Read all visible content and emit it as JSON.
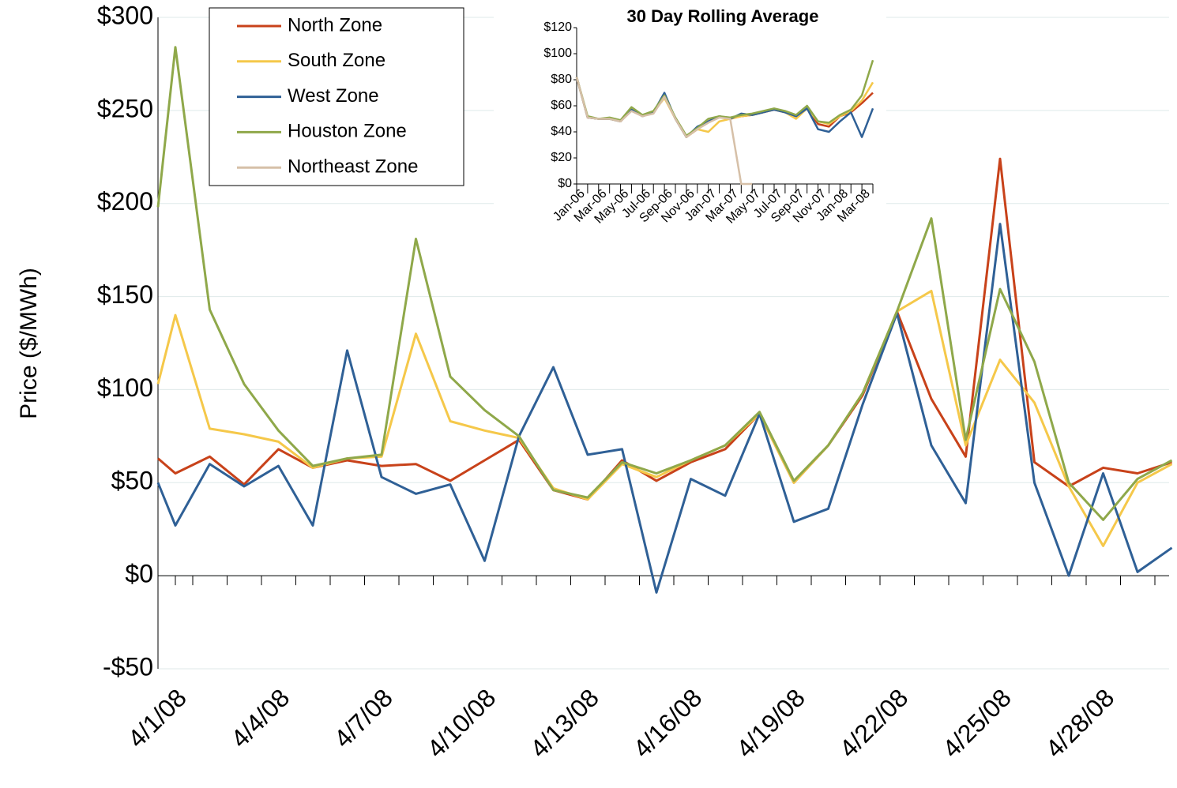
{
  "chart_data": [
    {
      "type": "line",
      "y_label": "Price ($/MWh)",
      "categories": [
        null,
        "4/1/08",
        null,
        null,
        "4/4/08",
        null,
        null,
        "4/7/08",
        null,
        null,
        "4/10/08",
        null,
        null,
        "4/13/08",
        null,
        null,
        "4/16/08",
        null,
        null,
        "4/19/08",
        null,
        null,
        "4/22/08",
        null,
        null,
        "4/25/08",
        null,
        null,
        "4/28/08",
        null,
        null
      ],
      "ylim": [
        -50,
        300
      ],
      "yticks": [
        {
          "value": -50,
          "label": "-$50"
        },
        {
          "value": 0,
          "label": "$0"
        },
        {
          "value": 50,
          "label": "$50"
        },
        {
          "value": 100,
          "label": "$100"
        },
        {
          "value": 150,
          "label": "$150"
        },
        {
          "value": 200,
          "label": "$200"
        },
        {
          "value": 250,
          "label": "$250"
        },
        {
          "value": 300,
          "label": "$300"
        }
      ],
      "grid": true,
      "legend": "top-left",
      "series": [
        {
          "name": "North Zone",
          "color": "#c8421a",
          "values": [
            63,
            55,
            64,
            49,
            68,
            58,
            62,
            59,
            60,
            51,
            62,
            73,
            46,
            41,
            62,
            51,
            61,
            68,
            87,
            50,
            70,
            97,
            142,
            95,
            64,
            224,
            61,
            48,
            58,
            55,
            61
          ]
        },
        {
          "name": "South Zone",
          "color": "#f5c84a",
          "values": [
            103,
            140,
            79,
            76,
            72,
            58,
            63,
            64,
            130,
            83,
            78,
            74,
            47,
            41,
            60,
            53,
            62,
            70,
            87,
            50,
            70,
            98,
            142,
            153,
            70,
            116,
            93,
            48,
            16,
            50,
            60
          ]
        },
        {
          "name": "West Zone",
          "color": "#2f6096",
          "values": [
            50,
            27,
            60,
            48,
            59,
            27,
            121,
            53,
            44,
            49,
            8,
            75,
            112,
            65,
            68,
            -9,
            52,
            43,
            87,
            29,
            36,
            92,
            141,
            70,
            39,
            189,
            50,
            0,
            55,
            2,
            15
          ]
        },
        {
          "name": "Houston Zone",
          "color": "#8fa84a",
          "values": [
            198,
            284,
            143,
            103,
            78,
            59,
            63,
            65,
            181,
            107,
            89,
            75,
            46,
            42,
            61,
            55,
            62,
            70,
            88,
            51,
            70,
            98,
            142,
            192,
            73,
            154,
            115,
            50,
            30,
            52,
            62
          ]
        },
        {
          "name": "Northeast Zone",
          "color": "#d6c0a8",
          "values": [
            null,
            null,
            null,
            null,
            null,
            null,
            null,
            null,
            null,
            null,
            null,
            null,
            null,
            null,
            null,
            null,
            null,
            null,
            null,
            null,
            null,
            null,
            null,
            null,
            null,
            null,
            null,
            null,
            null,
            null,
            null
          ]
        }
      ]
    },
    {
      "type": "line",
      "title": "30 Day Rolling Average",
      "categories": [
        "Jan-06",
        null,
        "Mar-06",
        null,
        "May-06",
        null,
        "Jul-06",
        null,
        "Sep-06",
        null,
        "Nov-06",
        null,
        "Jan-07",
        null,
        "Mar-07",
        null,
        "May-07",
        null,
        "Jul-07",
        null,
        "Sep-07",
        null,
        "Nov-07",
        null,
        "Jan-08",
        null,
        "Mar-08",
        null
      ],
      "ylim": [
        0,
        120
      ],
      "yticks": [
        {
          "value": 0,
          "label": "$0"
        },
        {
          "value": 20,
          "label": "$20"
        },
        {
          "value": 40,
          "label": "$40"
        },
        {
          "value": 60,
          "label": "$60"
        },
        {
          "value": 80,
          "label": "$80"
        },
        {
          "value": 100,
          "label": "$100"
        },
        {
          "value": 120,
          "label": "$120"
        }
      ],
      "series": [
        {
          "name": "North Zone",
          "color": "#c8421a",
          "values": [
            82,
            51,
            50,
            50,
            48,
            57,
            52,
            55,
            68,
            50,
            36,
            42,
            48,
            52,
            50,
            52,
            53,
            55,
            57,
            55,
            52,
            58,
            46,
            44,
            52,
            55,
            62,
            70
          ]
        },
        {
          "name": "South Zone",
          "color": "#f5c84a",
          "values": [
            82,
            51,
            50,
            50,
            48,
            57,
            52,
            55,
            66,
            50,
            36,
            42,
            40,
            48,
            50,
            52,
            53,
            55,
            57,
            55,
            50,
            58,
            48,
            46,
            52,
            56,
            64,
            78
          ]
        },
        {
          "name": "West Zone",
          "color": "#2f6096",
          "values": [
            82,
            51,
            50,
            50,
            48,
            57,
            52,
            55,
            70,
            50,
            36,
            44,
            48,
            52,
            50,
            54,
            53,
            55,
            57,
            55,
            52,
            58,
            42,
            40,
            48,
            55,
            36,
            58
          ]
        },
        {
          "name": "Houston Zone",
          "color": "#8fa84a",
          "values": [
            82,
            52,
            50,
            51,
            49,
            59,
            53,
            56,
            68,
            51,
            37,
            43,
            50,
            52,
            51,
            53,
            54,
            56,
            58,
            56,
            53,
            60,
            48,
            47,
            53,
            57,
            68,
            95
          ]
        },
        {
          "name": "Northeast Zone",
          "color": "#d6c0a8",
          "values": [
            82,
            51,
            50,
            50,
            48,
            56,
            52,
            54,
            67,
            50,
            36,
            42,
            47,
            51,
            50,
            0,
            0,
            null,
            null,
            null,
            null,
            null,
            null,
            null,
            null,
            null,
            null,
            null
          ]
        }
      ]
    }
  ]
}
